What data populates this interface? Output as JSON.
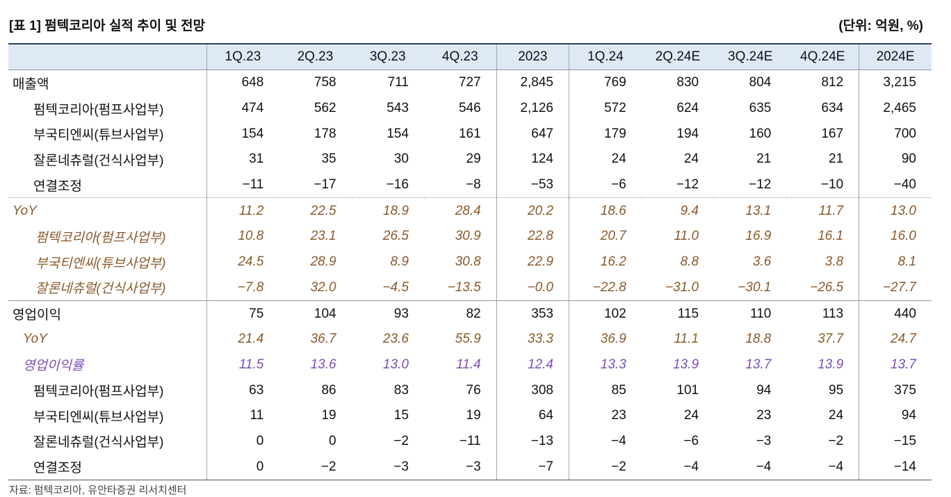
{
  "header": {
    "title": "[표 1] 펌텍코리아 실적 추이 및 전망",
    "unit": "(단위: 억원, %)"
  },
  "table": {
    "columns": [
      "1Q.23",
      "2Q.23",
      "3Q.23",
      "4Q.23",
      "2023",
      "1Q.24",
      "2Q.24E",
      "3Q.24E",
      "4Q.24E",
      "2024E"
    ],
    "rows": [
      {
        "label": "매출액",
        "values": [
          "648",
          "758",
          "711",
          "727",
          "2,845",
          "769",
          "830",
          "804",
          "812",
          "3,215"
        ]
      },
      {
        "label": "펌텍코리아(펌프사업부)",
        "values": [
          "474",
          "562",
          "543",
          "546",
          "2,126",
          "572",
          "624",
          "635",
          "634",
          "2,465"
        ]
      },
      {
        "label": "부국티엔씨(튜브사업부)",
        "values": [
          "154",
          "178",
          "154",
          "161",
          "647",
          "179",
          "194",
          "160",
          "167",
          "700"
        ]
      },
      {
        "label": "잘론네츄럴(건식사업부)",
        "values": [
          "31",
          "35",
          "30",
          "29",
          "124",
          "24",
          "24",
          "21",
          "21",
          "90"
        ]
      },
      {
        "label": "연결조정",
        "values": [
          "−11",
          "−17",
          "−16",
          "−8",
          "−53",
          "−6",
          "−12",
          "−12",
          "−10",
          "−40"
        ]
      },
      {
        "label": "YoY",
        "values": [
          "11.2",
          "22.5",
          "18.9",
          "28.4",
          "20.2",
          "18.6",
          "9.4",
          "13.1",
          "11.7",
          "13.0"
        ]
      },
      {
        "label": "펌텍코리아(펌프사업부)",
        "values": [
          "10.8",
          "23.1",
          "26.5",
          "30.9",
          "22.8",
          "20.7",
          "11.0",
          "16.9",
          "16.1",
          "16.0"
        ]
      },
      {
        "label": "부국티엔씨(튜브사업부)",
        "values": [
          "24.5",
          "28.9",
          "8.9",
          "30.8",
          "22.9",
          "16.2",
          "8.8",
          "3.6",
          "3.8",
          "8.1"
        ]
      },
      {
        "label": "잘론네츄럴(건식사업부)",
        "values": [
          "−7.8",
          "32.0",
          "−4.5",
          "−13.5",
          "−0.0",
          "−22.8",
          "−31.0",
          "−30.1",
          "−26.5",
          "−27.7"
        ]
      },
      {
        "label": "영업이익",
        "values": [
          "75",
          "104",
          "93",
          "82",
          "353",
          "102",
          "115",
          "110",
          "113",
          "440"
        ]
      },
      {
        "label": "YoY",
        "values": [
          "21.4",
          "36.7",
          "23.6",
          "55.9",
          "33.3",
          "36.9",
          "11.1",
          "18.8",
          "37.7",
          "24.7"
        ]
      },
      {
        "label": "영업이익률",
        "values": [
          "11.5",
          "13.6",
          "13.0",
          "11.4",
          "12.4",
          "13.3",
          "13.9",
          "13.7",
          "13.9",
          "13.7"
        ]
      },
      {
        "label": "펌텍코리아(펌프사업부)",
        "values": [
          "63",
          "86",
          "83",
          "76",
          "308",
          "85",
          "101",
          "94",
          "95",
          "375"
        ]
      },
      {
        "label": "부국티엔씨(튜브사업부)",
        "values": [
          "11",
          "19",
          "15",
          "19",
          "64",
          "23",
          "24",
          "23",
          "24",
          "94"
        ]
      },
      {
        "label": "잘론네츄럴(건식사업부)",
        "values": [
          "0",
          "0",
          "−2",
          "−11",
          "−13",
          "−4",
          "−6",
          "−3",
          "−2",
          "−15"
        ]
      },
      {
        "label": "연결조정",
        "values": [
          "0",
          "−2",
          "−3",
          "−3",
          "−7",
          "−2",
          "−4",
          "−4",
          "−4",
          "−14"
        ]
      }
    ]
  },
  "footer": {
    "source": "자료: 펌텍코리아, 유안타증권 리서치센터"
  }
}
